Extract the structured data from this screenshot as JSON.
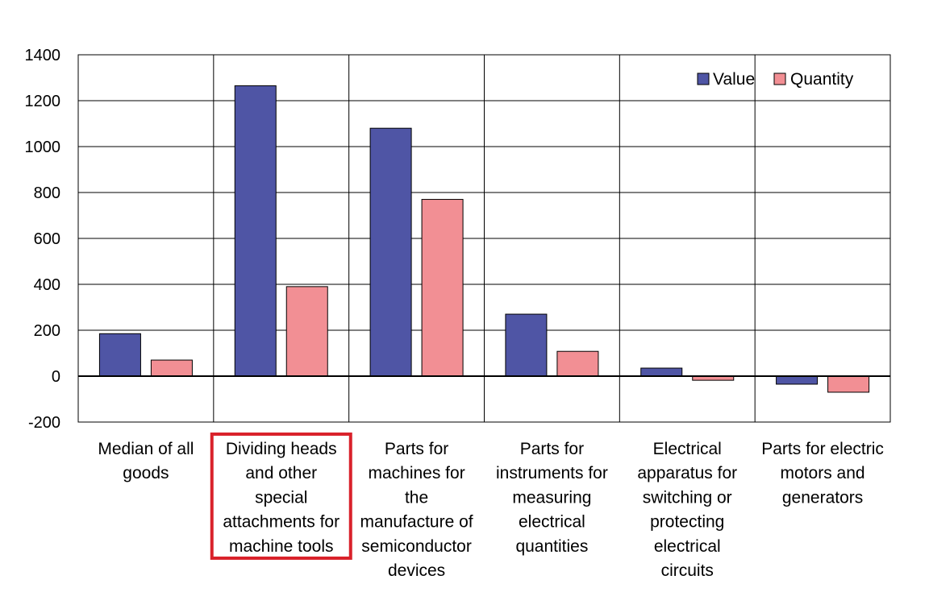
{
  "chart_data": {
    "type": "bar",
    "categories": [
      [
        "Median of all",
        "goods"
      ],
      [
        "Dividing heads",
        "and other",
        "special",
        "attachments for",
        "machine tools"
      ],
      [
        "Parts for",
        "machines for",
        "the",
        "manufacture of",
        "semiconductor",
        "devices"
      ],
      [
        "Parts for",
        "instruments for",
        "measuring",
        "electrical",
        "quantities"
      ],
      [
        "Electrical",
        "apparatus for",
        "switching or",
        "protecting",
        "electrical",
        "circuits"
      ],
      [
        "Parts for electric",
        "motors and",
        "generators"
      ]
    ],
    "series": [
      {
        "name": "Value",
        "values": [
          185,
          1265,
          1080,
          270,
          35,
          -35
        ],
        "color": "#4f55a5"
      },
      {
        "name": "Quantity",
        "values": [
          70,
          390,
          770,
          108,
          -18,
          -70
        ],
        "color": "#f28f94"
      }
    ],
    "ylim": [
      -200,
      1400
    ],
    "yticks": [
      -200,
      0,
      200,
      400,
      600,
      800,
      1000,
      1200,
      1400
    ],
    "grid": true,
    "legend_position": "top-right",
    "highlighted_category_index": 1,
    "highlight_color": "#d9222b"
  }
}
